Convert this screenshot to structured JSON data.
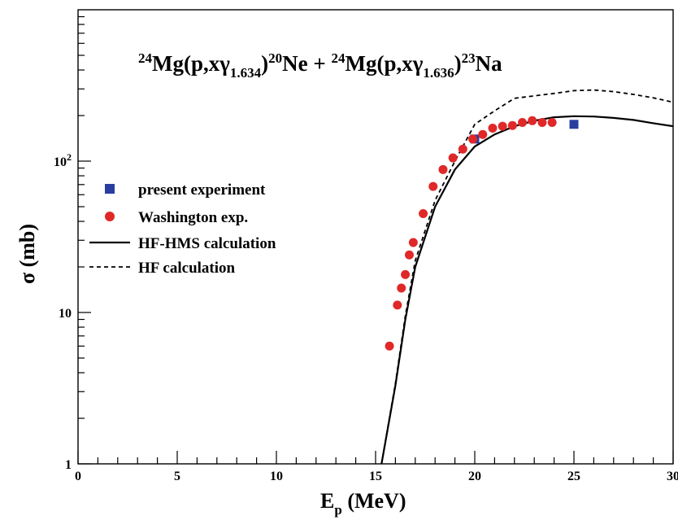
{
  "chart_data": {
    "type": "scatter",
    "title_parts": [
      {
        "text": "24",
        "style": "sup"
      },
      {
        "text": "Mg(p,x",
        "style": "normal"
      },
      {
        "text": "γ",
        "style": "normal"
      },
      {
        "text": "1.634",
        "style": "sub"
      },
      {
        "text": ")",
        "style": "normal"
      },
      {
        "text": "20",
        "style": "sup"
      },
      {
        "text": "Ne + ",
        "style": "normal"
      },
      {
        "text": "24",
        "style": "sup"
      },
      {
        "text": "Mg(p,x",
        "style": "normal"
      },
      {
        "text": "γ",
        "style": "normal"
      },
      {
        "text": "1.636",
        "style": "sub"
      },
      {
        "text": ")",
        "style": "normal"
      },
      {
        "text": "23",
        "style": "sup"
      },
      {
        "text": "Na",
        "style": "normal"
      }
    ],
    "xlabel_main": "E",
    "xlabel_sub": "p",
    "xlabel_unit": " (MeV)",
    "ylabel": "σ (mb)",
    "xlim": [
      0,
      30
    ],
    "ylim": [
      1,
      1000
    ],
    "yscale": "log",
    "grid": false,
    "legend_position": "middle-left",
    "x_tick_labels": [
      "0",
      "5",
      "10",
      "15",
      "20",
      "25",
      "30"
    ],
    "x_tick_values": [
      0,
      5,
      10,
      15,
      20,
      25,
      30
    ],
    "y_tick_labels": [
      {
        "value": 1,
        "base": "1",
        "exp": ""
      },
      {
        "value": 10,
        "base": "10",
        "exp": ""
      },
      {
        "value": 100,
        "base": "10",
        "exp": "2"
      }
    ],
    "series": [
      {
        "name": "present experiment",
        "kind": "markers",
        "marker": "square",
        "color": "#2a3ea0",
        "x": [
          20.0,
          25.0
        ],
        "y": [
          140,
          175
        ],
        "yerr": [
          8,
          10
        ]
      },
      {
        "name": "Washington exp.",
        "kind": "markers",
        "marker": "circle",
        "color": "#e02828",
        "x": [
          15.7,
          16.1,
          16.3,
          16.5,
          16.7,
          16.9,
          17.4,
          17.9,
          18.4,
          18.9,
          19.4,
          19.9,
          20.4,
          20.9,
          21.4,
          21.9,
          22.4,
          22.9,
          23.4,
          23.9
        ],
        "y": [
          6.0,
          11.2,
          14.5,
          17.8,
          24,
          29,
          45,
          68,
          88,
          105,
          120,
          140,
          150,
          165,
          170,
          172,
          180,
          185,
          180,
          180
        ]
      },
      {
        "name": "HF-HMS calculation",
        "kind": "line",
        "dash": "solid",
        "color": "#000000",
        "x": [
          15.3,
          16.0,
          16.5,
          17.0,
          18.0,
          19.0,
          20.0,
          21.0,
          22.0,
          23.0,
          24.0,
          25.0,
          26.0,
          27.0,
          28.0,
          29.0,
          30.0
        ],
        "y": [
          1.0,
          3.3,
          9.0,
          20.0,
          50,
          88,
          125,
          150,
          170,
          185,
          195,
          198,
          197,
          193,
          187,
          178,
          170
        ]
      },
      {
        "name": "HF calculation",
        "kind": "line",
        "dash": "dashed",
        "color": "#000000",
        "x": [
          15.3,
          16.0,
          16.5,
          17.0,
          18.0,
          19.0,
          20.0,
          21.0,
          22.0,
          23.0,
          24.0,
          25.0,
          26.0,
          27.0,
          28.0,
          29.0,
          30.0
        ],
        "y": [
          1.0,
          3.4,
          9.5,
          22.0,
          55,
          100,
          175,
          215,
          260,
          270,
          280,
          292,
          295,
          288,
          276,
          262,
          245
        ]
      }
    ]
  }
}
